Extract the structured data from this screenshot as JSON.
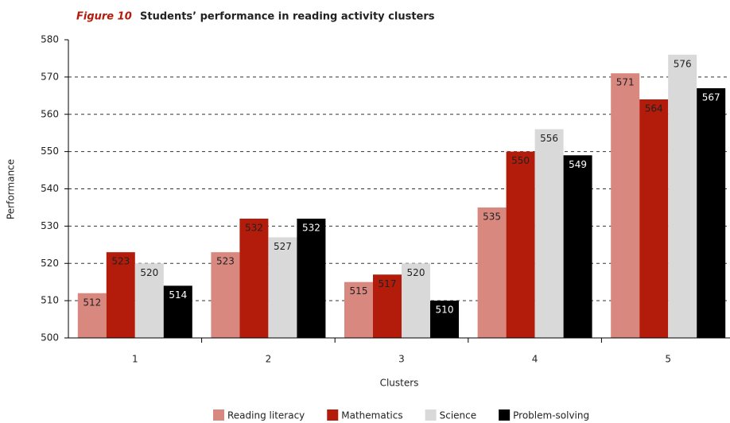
{
  "chart_data": {
    "type": "bar",
    "figure_label": "Figure 10",
    "title": "Students’ performance in reading activity clusters",
    "x_label": "Clusters",
    "y_label": "Performance",
    "categories": [
      "1",
      "2",
      "3",
      "4",
      "5"
    ],
    "series": [
      {
        "name": "Reading literacy",
        "color": "#d98880",
        "values": [
          512,
          523,
          515,
          535,
          571
        ]
      },
      {
        "name": "Mathematics",
        "color": "#b31b0a",
        "values": [
          523,
          532,
          517,
          550,
          564
        ]
      },
      {
        "name": "Science",
        "color": "#d9d9d9",
        "values": [
          520,
          527,
          520,
          556,
          576
        ]
      },
      {
        "name": "Problem-solving",
        "color": "#000000",
        "values": [
          514,
          532,
          510,
          549,
          567
        ]
      }
    ],
    "ylim": [
      500,
      580
    ],
    "yticks": [
      500,
      510,
      520,
      530,
      540,
      550,
      560,
      570,
      580
    ],
    "grid": true,
    "legend": "bottom"
  }
}
